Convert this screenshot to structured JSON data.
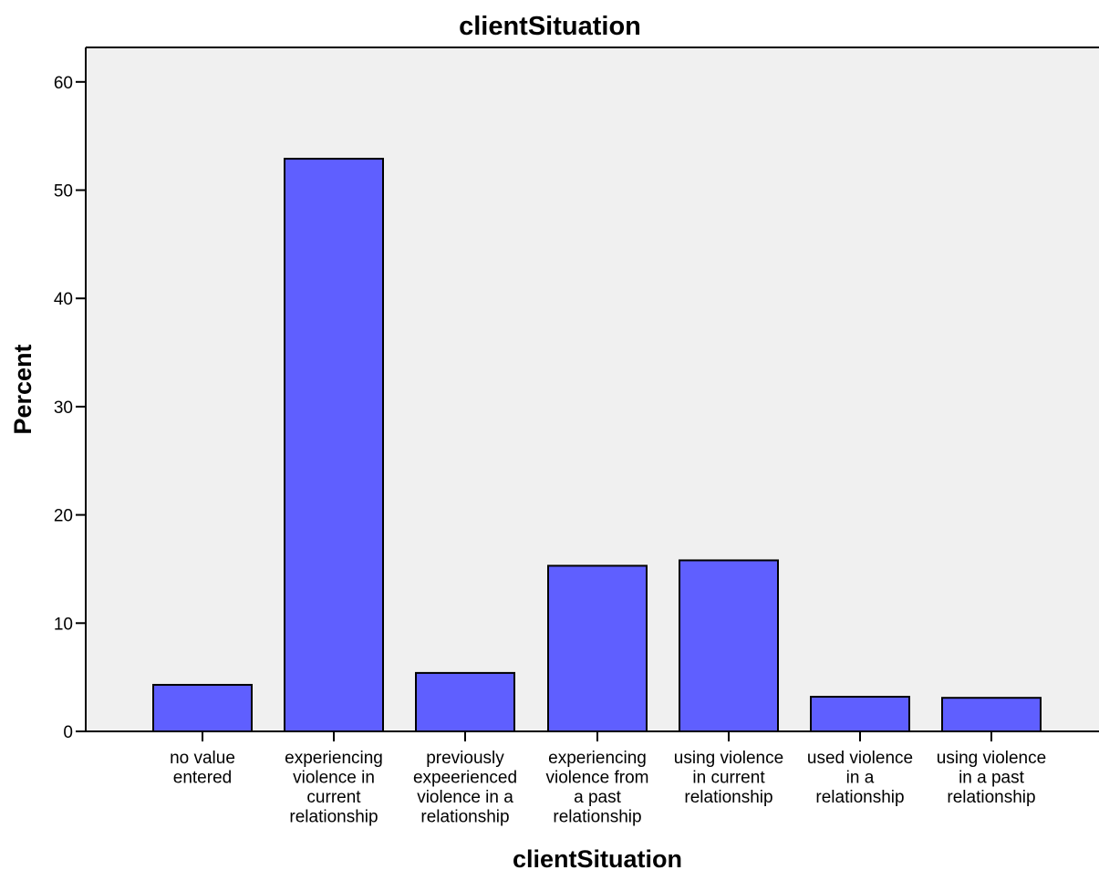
{
  "chart_data": {
    "type": "bar",
    "title": "clientSituation",
    "xlabel": "clientSituation",
    "ylabel": "Percent",
    "ylim": [
      0,
      63
    ],
    "yticks": [
      0,
      10,
      20,
      30,
      40,
      50,
      60
    ],
    "grid": false,
    "colors": {
      "plot_background": "#f0f0f0",
      "bar_fill": "#5f5fff",
      "bar_stroke": "#000000"
    },
    "categories": [
      [
        "no value",
        "entered"
      ],
      [
        "experiencing",
        "violence in",
        "current",
        "relationship"
      ],
      [
        "previously",
        "expeerienced",
        "violence in a",
        "relationship"
      ],
      [
        "experiencing",
        "violence from",
        "a past",
        "relationship"
      ],
      [
        "using violence",
        "in current",
        "relationship"
      ],
      [
        "used violence",
        "in a",
        "relationship"
      ],
      [
        "using violence",
        "in a past",
        "relationship"
      ]
    ],
    "values": [
      4.3,
      52.9,
      5.4,
      15.3,
      15.8,
      3.2,
      3.1
    ]
  }
}
